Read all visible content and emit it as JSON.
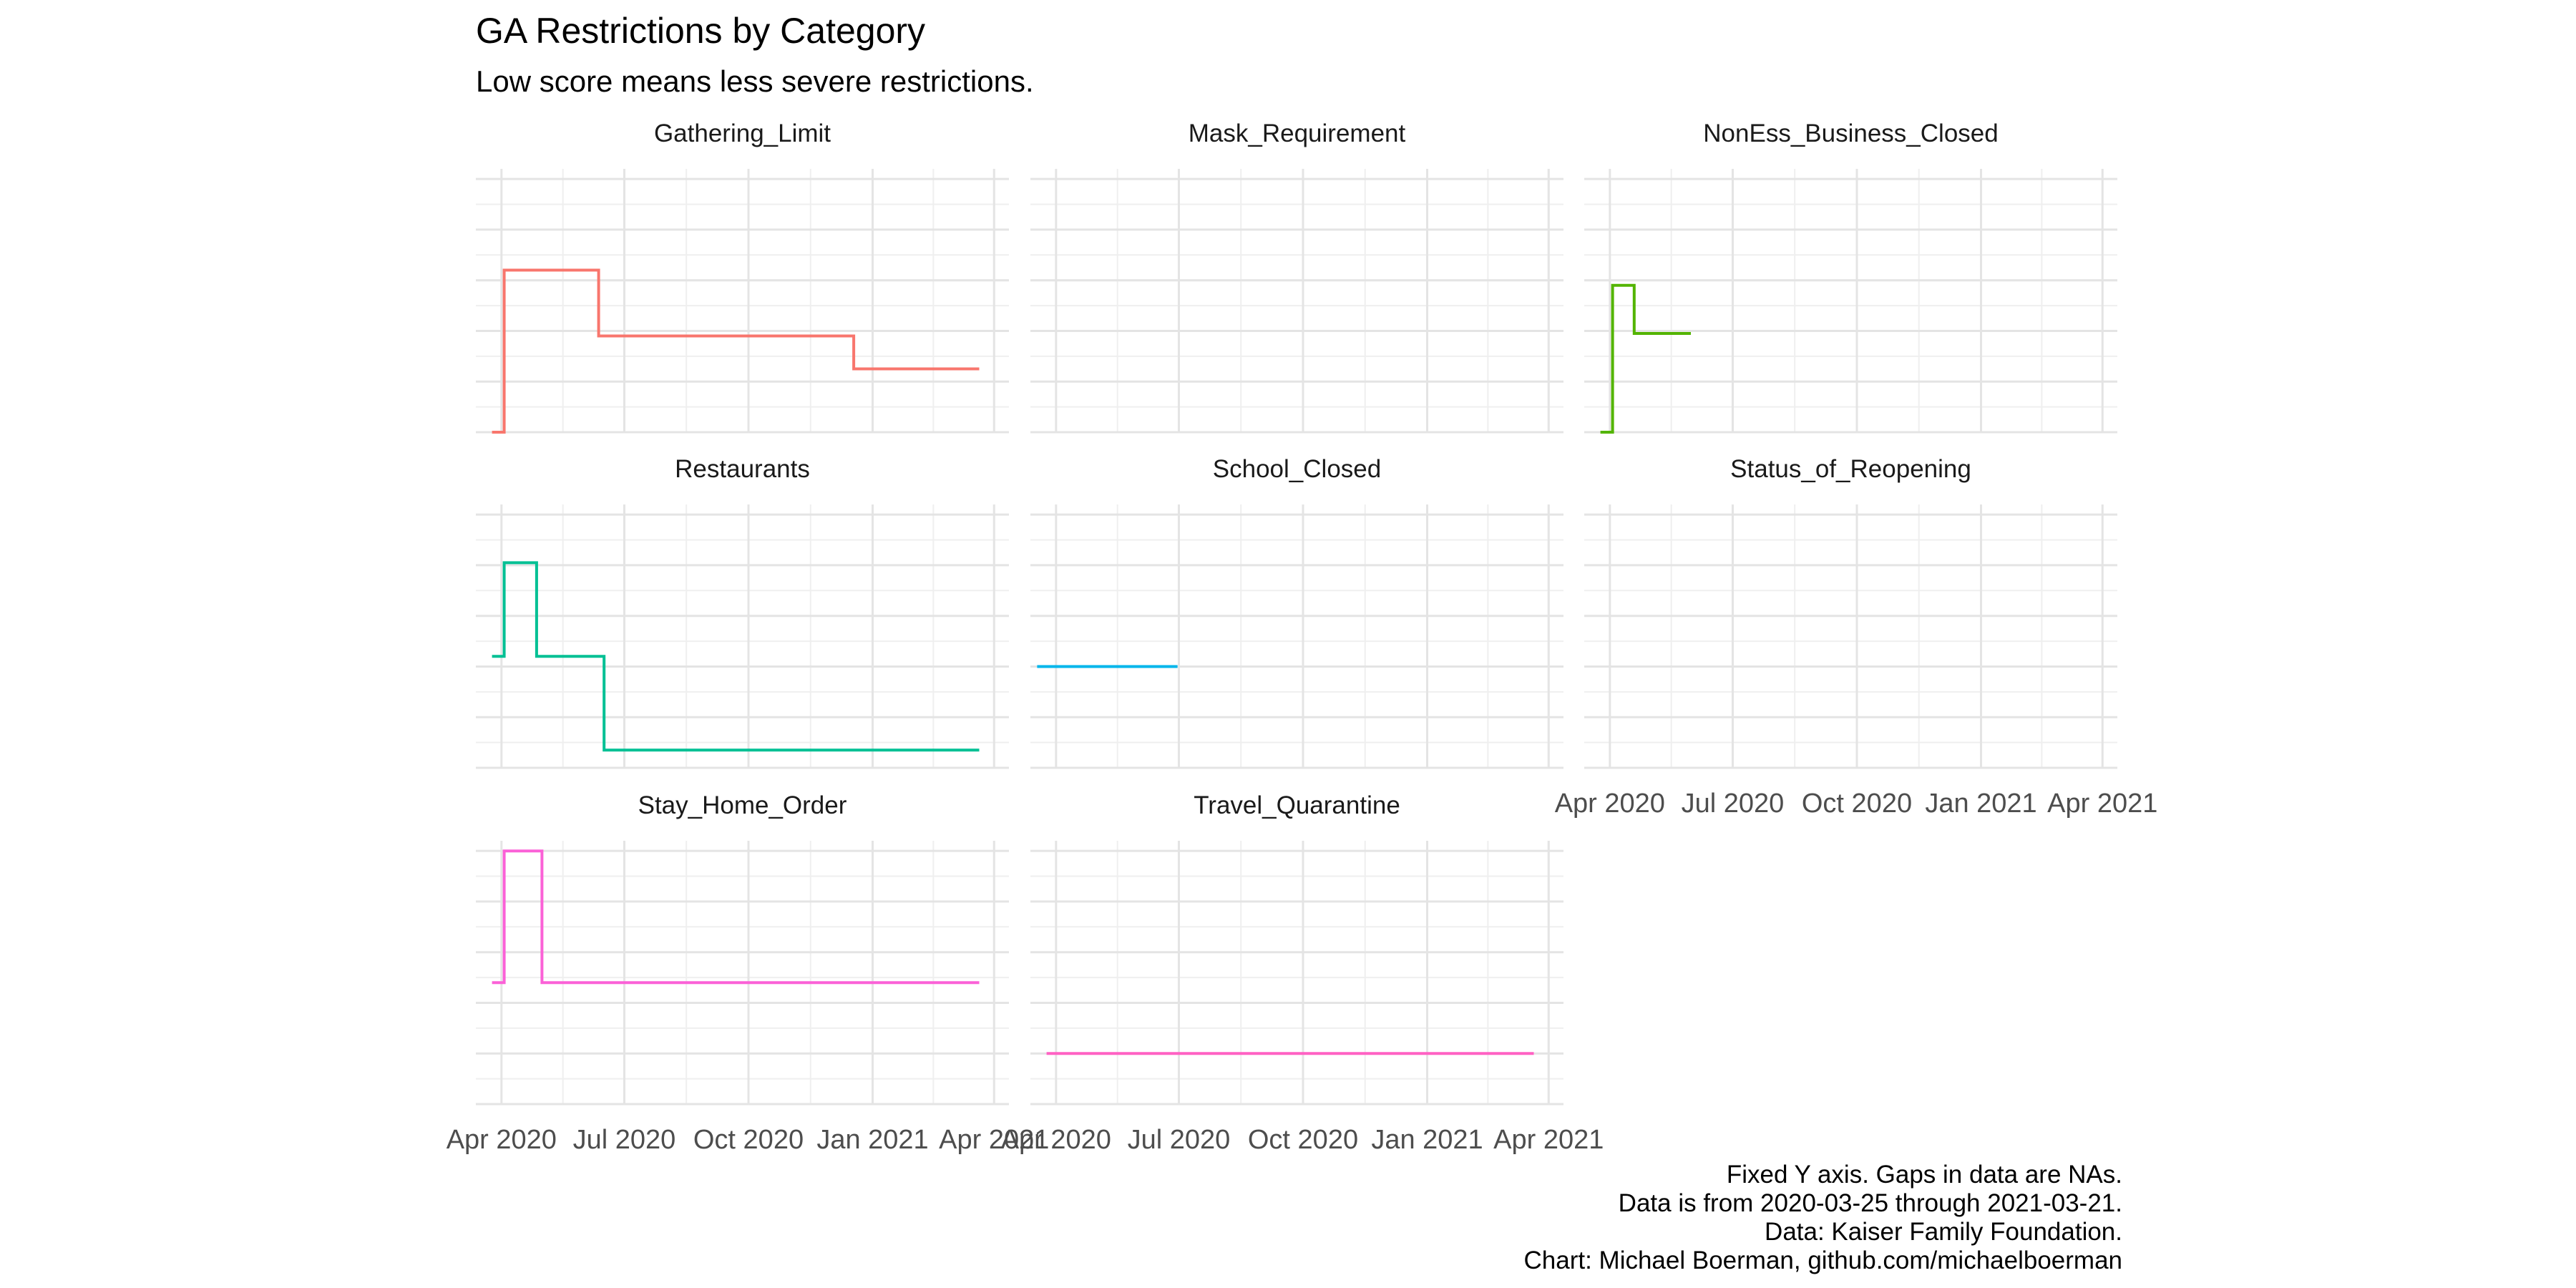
{
  "title": "GA Restrictions by Category",
  "subtitle": "Low score means less severe restrictions.",
  "caption": [
    "Fixed Y axis. Gaps in data are NAs.",
    "Data is from 2020-03-25 through 2021-03-21.",
    "Data: Kaiser Family Foundation.",
    "Chart: Michael Boerman, github.com/michaelboerman"
  ],
  "chart_data": {
    "type": "line",
    "layout": "facet_wrap 3 columns, step lines, fixed y axis, no y tick labels",
    "grid": true,
    "legend": "none",
    "xlim": [
      "2020-03-13",
      "2021-04-12"
    ],
    "ylim": [
      0,
      5.2
    ],
    "x_ticks": [
      "2020-04-01",
      "2020-07-01",
      "2020-10-01",
      "2021-01-01",
      "2021-04-01"
    ],
    "x_tick_labels": [
      "Apr 2020",
      "Jul 2020",
      "Oct 2020",
      "Jan 2021",
      "Apr 2021"
    ],
    "y_ticks": [
      0,
      1,
      2,
      3,
      4,
      5
    ],
    "panels": [
      {
        "name": "Gathering_Limit",
        "color": "#F8766D",
        "x": [
          "2020-03-25",
          "2020-04-03",
          "2020-04-03",
          "2020-06-12",
          "2020-06-12",
          "2020-12-18",
          "2020-12-18",
          "2021-03-21"
        ],
        "y": [
          0,
          0,
          3.2,
          3.2,
          1.9,
          1.9,
          1.25,
          1.25
        ]
      },
      {
        "name": "Mask_Requirement",
        "color": "#C49A00",
        "x": [],
        "y": []
      },
      {
        "name": "NonEss_Business_Closed",
        "color": "#53B400",
        "x": [
          "2020-03-25",
          "2020-04-03",
          "2020-04-03",
          "2020-04-19",
          "2020-04-19",
          "2020-05-31"
        ],
        "y": [
          0,
          0,
          2.9,
          2.9,
          1.95,
          1.95
        ]
      },
      {
        "name": "Restaurants",
        "color": "#00C094",
        "x": [
          "2020-03-25",
          "2020-04-03",
          "2020-04-03",
          "2020-04-27",
          "2020-04-27",
          "2020-06-16",
          "2020-06-16",
          "2021-03-21"
        ],
        "y": [
          2.2,
          2.2,
          4.05,
          4.05,
          2.2,
          2.2,
          0.35,
          0.35
        ]
      },
      {
        "name": "School_Closed",
        "color": "#00B6EB",
        "x": [
          "2020-03-18",
          "2020-06-30"
        ],
        "y": [
          2,
          2
        ]
      },
      {
        "name": "Status_of_Reopening",
        "color": "#A58AFF",
        "x": [],
        "y": []
      },
      {
        "name": "Stay_Home_Order",
        "color": "#FB61D7",
        "x": [
          "2020-03-25",
          "2020-04-03",
          "2020-04-03",
          "2020-05-01",
          "2020-05-01",
          "2021-03-21"
        ],
        "y": [
          2.4,
          2.4,
          5,
          5,
          2.4,
          2.4
        ]
      },
      {
        "name": "Travel_Quarantine",
        "color": "#FF61C3",
        "x": [
          "2020-03-25",
          "2021-03-21"
        ],
        "y": [
          1,
          1
        ]
      }
    ]
  }
}
